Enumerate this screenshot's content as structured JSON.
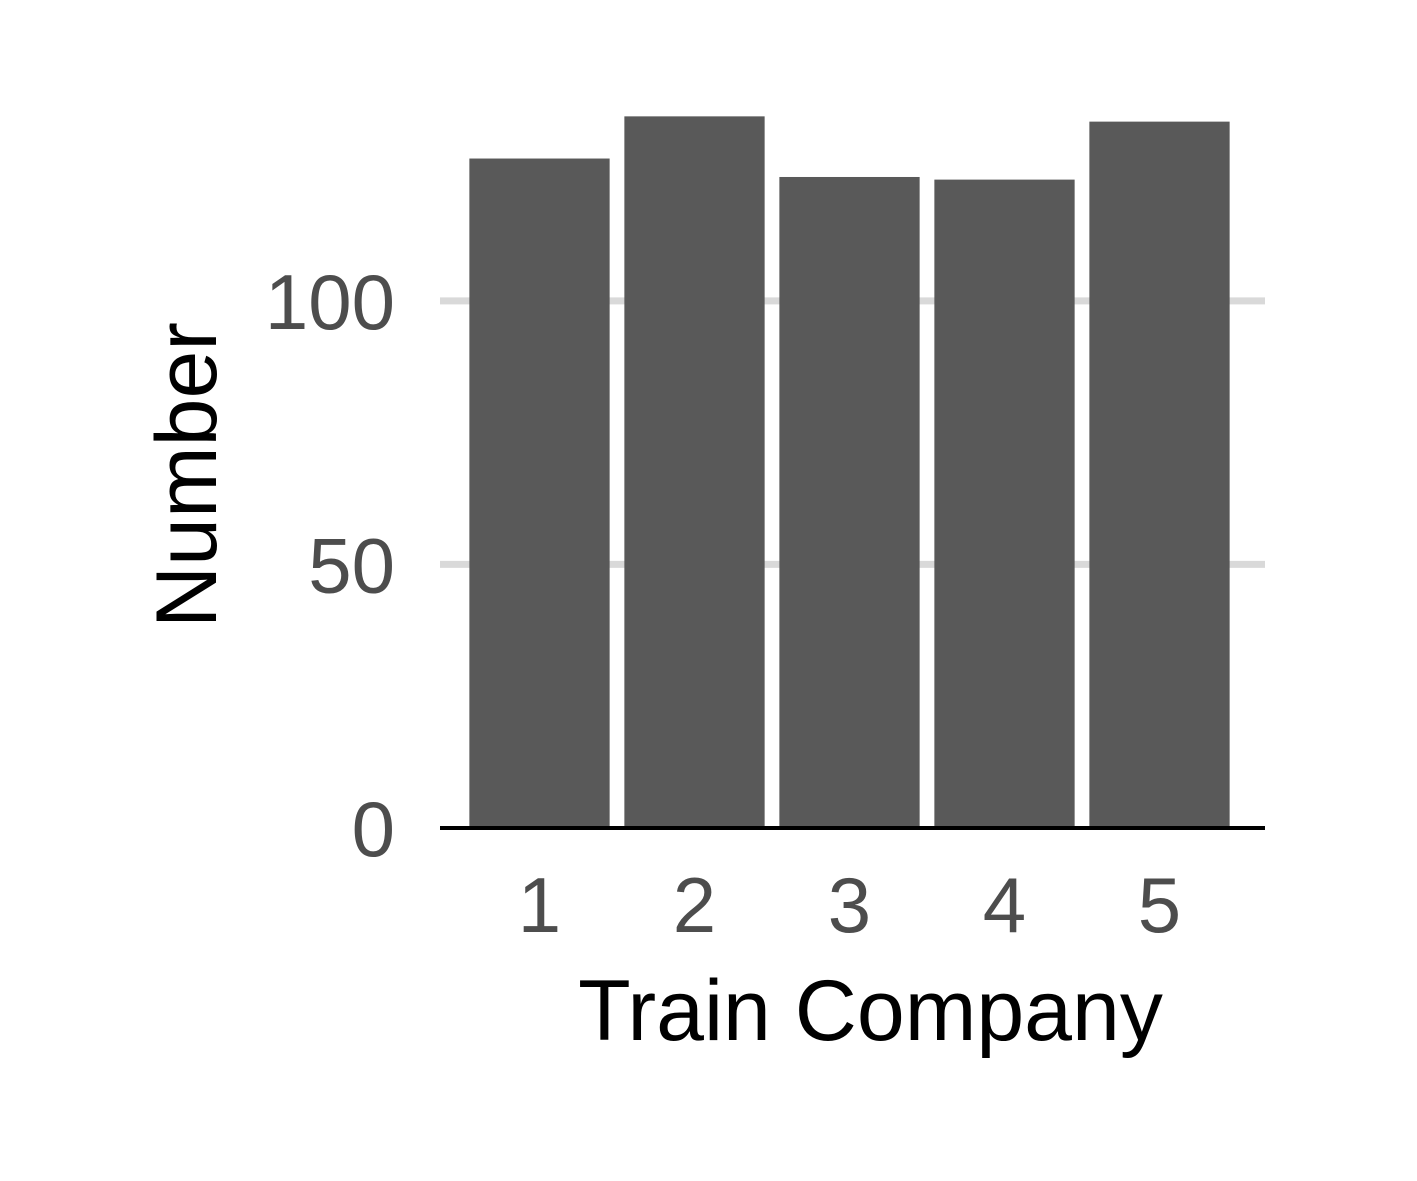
{
  "chart_data": {
    "type": "bar",
    "categories": [
      "1",
      "2",
      "3",
      "4",
      "5"
    ],
    "values": [
      127,
      135,
      123.5,
      123,
      134
    ],
    "xlabel": "Train Company",
    "ylabel": "Number",
    "ylim": [
      0,
      140
    ],
    "yticks": [
      0,
      50,
      100
    ],
    "grid": "horizontal",
    "colors": {
      "bar": "#595959",
      "grid": "#d9d9d9",
      "axis": "#000000",
      "tick_text": "#4d4d4d"
    }
  }
}
